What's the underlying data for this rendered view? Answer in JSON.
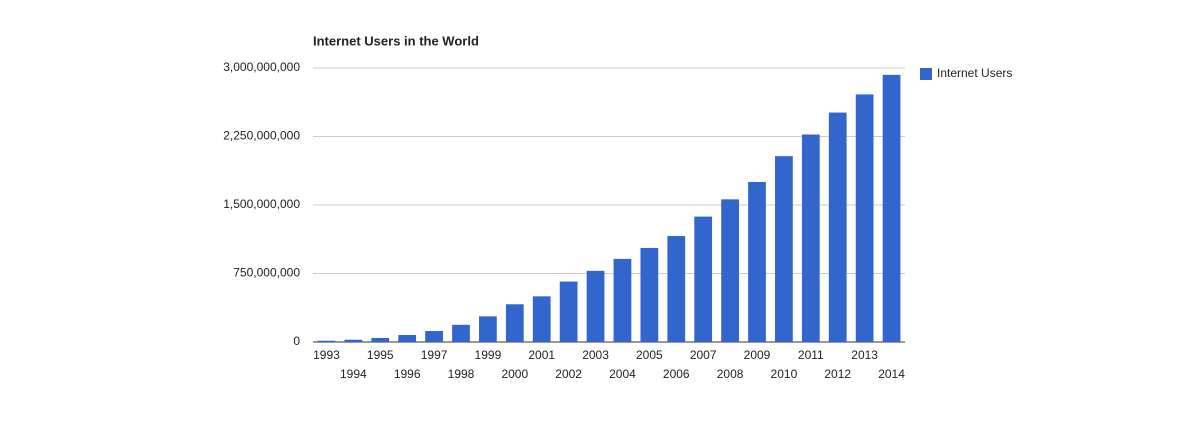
{
  "chart_data": {
    "type": "bar",
    "title": "Internet Users in the World",
    "categories": [
      "1993",
      "1994",
      "1995",
      "1996",
      "1997",
      "1998",
      "1999",
      "2000",
      "2001",
      "2002",
      "2003",
      "2004",
      "2005",
      "2006",
      "2007",
      "2008",
      "2009",
      "2010",
      "2011",
      "2012",
      "2013",
      "2014"
    ],
    "series": [
      {
        "name": "Internet Users",
        "color": "#3366cc",
        "values": [
          14000000,
          25000000,
          44000000,
          77000000,
          120000000,
          188000000,
          281000000,
          413000000,
          500000000,
          662000000,
          779000000,
          910000000,
          1030000000,
          1160000000,
          1373000000,
          1562000000,
          1752000000,
          2035000000,
          2272000000,
          2512000000,
          2711000000,
          2925000000
        ]
      }
    ],
    "ylim": [
      0,
      3000000000
    ],
    "yticks": [
      0,
      {
        "value": 750000000,
        "label": "750,000,000"
      },
      {
        "value": 1500000000,
        "label": "1,500,000,000"
      },
      {
        "value": 2250000000,
        "label": "2,250,000,000"
      },
      {
        "value": 3000000000,
        "label": "3,000,000,000"
      }
    ],
    "grid": true,
    "legend": "right"
  }
}
